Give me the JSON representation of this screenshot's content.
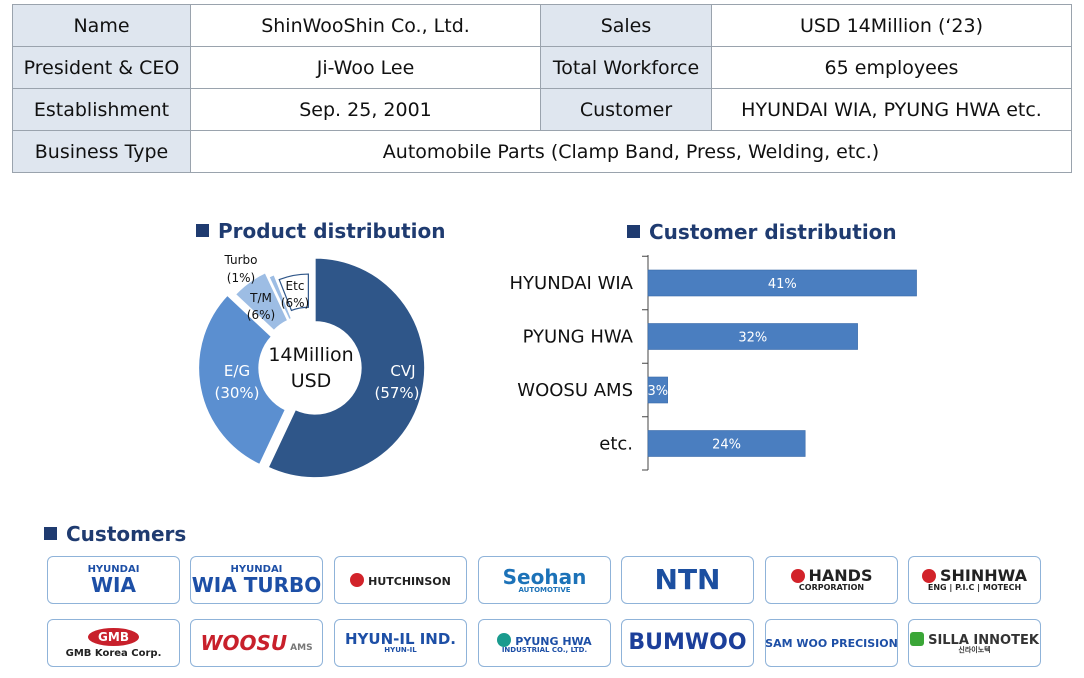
{
  "info": {
    "rows": [
      [
        {
          "label": "Name",
          "value": "ShinWooShin Co., Ltd."
        },
        {
          "label": "Sales",
          "value": "USD 14Million (‘23)"
        }
      ],
      [
        {
          "label": "President & CEO",
          "value": "Ji-Woo Lee"
        },
        {
          "label": "Total Workforce",
          "value": "65 employees"
        }
      ],
      [
        {
          "label": "Establishment",
          "value": "Sep. 25, 2001"
        },
        {
          "label": "Customer",
          "value": "HYUNDAI WIA, PYUNG HWA etc."
        }
      ]
    ],
    "business": {
      "label": "Business Type",
      "value": "Automobile Parts (Clamp Band, Press, Welding, etc.)"
    }
  },
  "product_title": "Product distribution",
  "customer_title": "Customer distribution",
  "customers_title": "Customers",
  "chart_data": [
    {
      "type": "pie",
      "title": "Product distribution",
      "center_label": [
        "14Million",
        "USD"
      ],
      "slices": [
        {
          "name": "CVJ",
          "value": 57,
          "label": "(57%)",
          "color": "#2f5689"
        },
        {
          "name": "E/G",
          "value": 30,
          "label": "(30%)",
          "color": "#5b8fd0"
        },
        {
          "name": "T/M",
          "value": 6,
          "label": "(6%)",
          "color": "#9dbde4"
        },
        {
          "name": "Turbo",
          "value": 1,
          "label": "(1%)",
          "color": "#9dbde4"
        },
        {
          "name": "Etc",
          "value": 6,
          "label": "(6%)",
          "color": "#ffffff"
        }
      ]
    },
    {
      "type": "bar",
      "orientation": "horizontal",
      "title": "Customer distribution",
      "categories": [
        "HYUNDAI WIA",
        "PYUNG HWA",
        "WOOSU AMS",
        "etc."
      ],
      "values": [
        41,
        32,
        3,
        24
      ],
      "labels": [
        "41%",
        "32%",
        "3%",
        "24%"
      ],
      "color": "#4a7ec0"
    }
  ],
  "logos": [
    {
      "id": "hyundai-wia",
      "lines": [
        "HYUNDAI",
        "WIA"
      ],
      "color": "#1d4fa6"
    },
    {
      "id": "hyundai-wia-turbo",
      "lines": [
        "HYUNDAI",
        "WIA TURBO"
      ],
      "color": "#1d4fa6"
    },
    {
      "id": "hutchinson",
      "lines": [
        "HUTCHINSON"
      ],
      "color": "#222222",
      "accent": "#d2232a"
    },
    {
      "id": "seohan",
      "lines": [
        "Seohan",
        "AUTOMOTIVE"
      ],
      "color": "#1c72b8"
    },
    {
      "id": "ntn",
      "lines": [
        "NTN"
      ],
      "color": "#1c4fa0"
    },
    {
      "id": "hands",
      "lines": [
        "HANDS",
        "CORPORATION"
      ],
      "color": "#222222",
      "accent": "#d2232a"
    },
    {
      "id": "shinhwa",
      "lines": [
        "SHINHWA",
        "ENG | P.I.C | MOTECH"
      ],
      "color": "#222222",
      "accent": "#d2232a"
    },
    {
      "id": "gmb",
      "lines": [
        "GMB",
        "GMB Korea Corp."
      ],
      "color": "#222222",
      "accent": "#c8202b"
    },
    {
      "id": "woosu",
      "lines": [
        "WOOSU",
        "AMS"
      ],
      "color": "#c8202b"
    },
    {
      "id": "hyun-il",
      "lines": [
        "HYUN-IL IND.",
        "HYUN-IL"
      ],
      "color": "#1d4fa6"
    },
    {
      "id": "pyung-hwa",
      "lines": [
        "PYUNG HWA",
        "INDUSTRIAL CO., LTD."
      ],
      "color": "#1d4fa6",
      "accent": "#1a9b8e"
    },
    {
      "id": "bumwoo",
      "lines": [
        "BUMWOO"
      ],
      "color": "#1c3f9a"
    },
    {
      "id": "sam-woo",
      "lines": [
        "SAM WOO PRECISION"
      ],
      "color": "#1d4fa6"
    },
    {
      "id": "silla",
      "lines": [
        "SILLA INNOTEK",
        "신라이노텍"
      ],
      "color": "#333333",
      "accent": "#3aa637"
    }
  ]
}
